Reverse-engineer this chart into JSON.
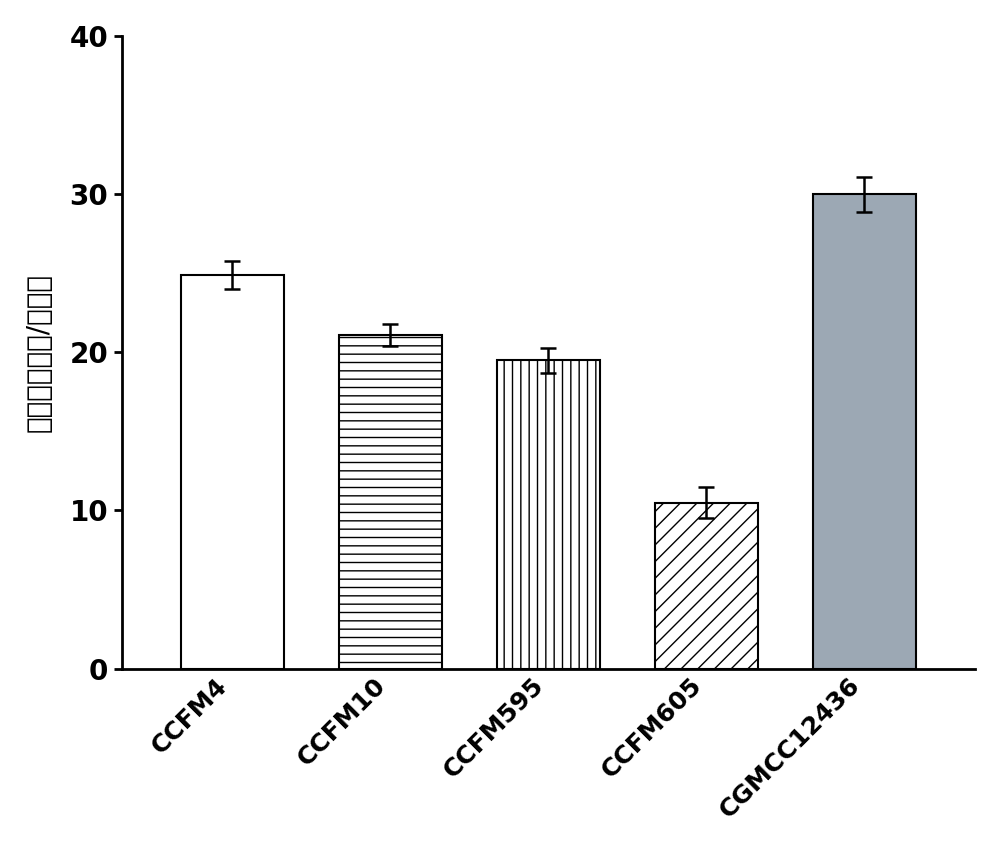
{
  "categories": [
    "CCFM4",
    "CCFM10",
    "CCFM595",
    "CCFM605",
    "CGMCC12436"
  ],
  "values": [
    24.9,
    21.1,
    19.5,
    10.5,
    30.0
  ],
  "errors": [
    0.9,
    0.7,
    0.8,
    1.0,
    1.1
  ],
  "hatches": [
    "",
    "--",
    "||",
    "//",
    ""
  ],
  "facecolors": [
    "white",
    "white",
    "white",
    "white",
    "#9ca8b4"
  ],
  "edgecolors": [
    "black",
    "black",
    "black",
    "black",
    "black"
  ],
  "ylabel": "粠附菌数（个/细胞）",
  "ylim": [
    0,
    40
  ],
  "yticks": [
    0,
    10,
    20,
    30,
    40
  ],
  "bar_width": 0.65,
  "background_color": "white",
  "tick_fontsize": 20,
  "ylabel_fontsize": 20,
  "xlabel_fontsize": 18,
  "error_capsize": 6,
  "error_linewidth": 1.8,
  "bar_linewidth": 1.5
}
